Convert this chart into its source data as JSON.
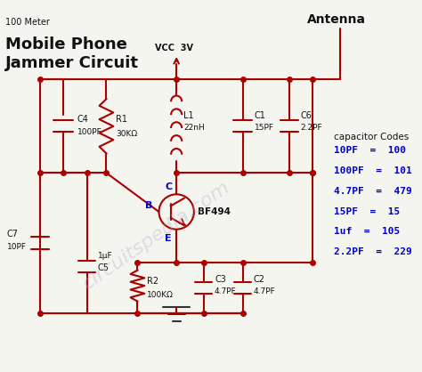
{
  "title_small": "100 Meter",
  "title_large": "Mobile Phone\nJammer Circuit",
  "antenna_label": "Antenna",
  "vcc_label": "VCC  3V",
  "transistor_label": "BF494",
  "components": {
    "C4": "100PF",
    "R1": "30KΩ",
    "L1": "22nH",
    "C1": "15PF",
    "C6": "2.2PF",
    "C7": "10PF",
    "C5": "1μF",
    "R2": "100KΩ",
    "C3": "4.7PF",
    "C2": "4.7PF"
  },
  "cap_codes_title": "capacitor Codes",
  "cap_codes": [
    [
      "10PF",
      "=",
      "100"
    ],
    [
      "100PF",
      "=",
      "101"
    ],
    [
      "4.7PF",
      "=",
      "479"
    ],
    [
      "15PF",
      "=",
      "15 "
    ],
    [
      "1uf",
      "=",
      "105"
    ],
    [
      "2.2PF",
      "=",
      "229"
    ]
  ],
  "wire_color": "#aa0000",
  "bg_color": "#f5f5f0",
  "text_color_blue": "#0000cc",
  "text_color_black": "#111111",
  "watermark": "circuitspedia.com"
}
